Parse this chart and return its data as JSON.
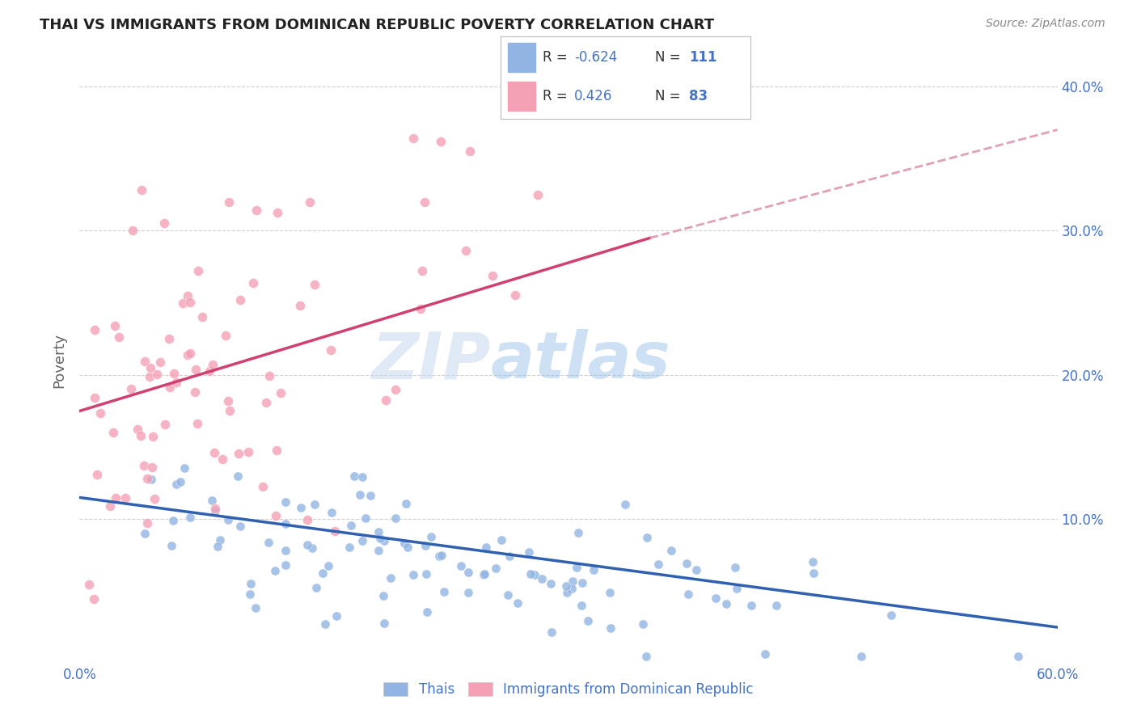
{
  "title": "THAI VS IMMIGRANTS FROM DOMINICAN REPUBLIC POVERTY CORRELATION CHART",
  "source": "Source: ZipAtlas.com",
  "ylabel": "Poverty",
  "yticks": [
    0.0,
    0.1,
    0.2,
    0.3,
    0.4
  ],
  "ytick_labels": [
    "",
    "10.0%",
    "20.0%",
    "30.0%",
    "40.0%"
  ],
  "xticks": [
    0.0,
    0.1,
    0.2,
    0.3,
    0.4,
    0.5,
    0.6
  ],
  "xtick_labels": [
    "0.0%",
    "",
    "",
    "",
    "",
    "",
    "60.0%"
  ],
  "xlim": [
    0.0,
    0.6
  ],
  "ylim": [
    0.0,
    0.42
  ],
  "legend_r_thai": "-0.624",
  "legend_n_thai": "111",
  "legend_r_dr": "0.426",
  "legend_n_dr": "83",
  "thai_color": "#92b4e3",
  "dr_color": "#f4a0b5",
  "thai_line_color": "#3060b0",
  "dr_line_color": "#d04070",
  "dr_dash_color": "#e0a0b8",
  "watermark_zip": "ZIP",
  "watermark_atlas": "atlas",
  "legend_label_thai": "Thais",
  "legend_label_dr": "Immigrants from Dominican Republic",
  "background_color": "#ffffff",
  "grid_color": "#cccccc",
  "title_color": "#222222",
  "axis_label_color": "#4472c4",
  "legend_text_color": "#4472c4",
  "legend_rn_color": "#222222",
  "seed_thai": 42,
  "seed_dr": 77,
  "thai_line_start_y": 0.115,
  "thai_line_end_y": 0.025,
  "dr_line_start_y": 0.175,
  "dr_line_end_y": 0.295,
  "dr_line_solid_end_x": 0.35,
  "dr_line_dash_end_x": 0.6,
  "dr_line_dash_end_y": 0.37
}
